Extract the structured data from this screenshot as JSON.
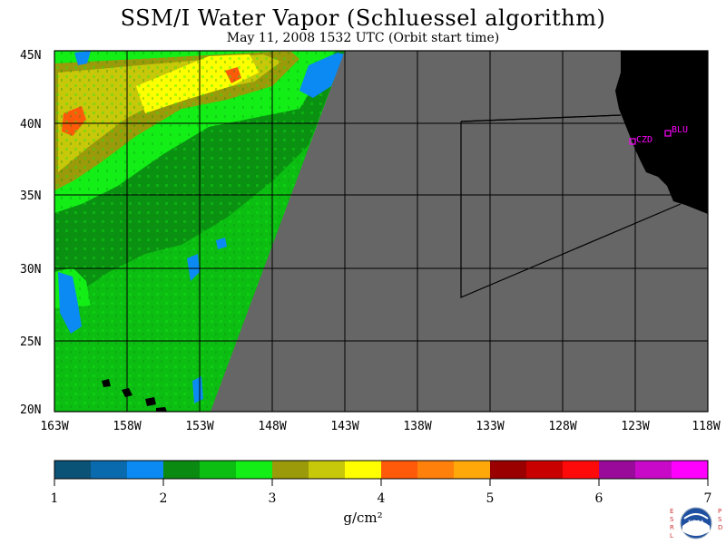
{
  "header": {
    "title": "SSM/I Water Vapor (Schluessel algorithm)",
    "subtitle": "May 11, 2008  1532 UTC  (Orbit start time)"
  },
  "map": {
    "lon_labels": [
      "163W",
      "158W",
      "153W",
      "148W",
      "143W",
      "138W",
      "133W",
      "128W",
      "123W",
      "118W"
    ],
    "lat_labels": [
      "45N",
      "40N",
      "35N",
      "30N",
      "25N",
      "20N"
    ],
    "stations": [
      {
        "id": "CZD",
        "label": "CZD"
      },
      {
        "id": "BLU",
        "label": "BLU"
      }
    ],
    "land_color": "#000000",
    "nodata_color": "#666666",
    "station_color": "#ff00ff"
  },
  "colorbar": {
    "tick_labels": [
      "1",
      "2",
      "3",
      "4",
      "5",
      "6",
      "7"
    ],
    "unit": "g/cm²",
    "min": 1,
    "max": 7,
    "colors": [
      "#0a5276",
      "#0a6aae",
      "#0a8af2",
      "#0b8a12",
      "#0cbe12",
      "#12ee16",
      "#9a9a0a",
      "#c8c80a",
      "#ffff00",
      "#ff5a0a",
      "#ff800a",
      "#ffa80a",
      "#9a0000",
      "#c80000",
      "#ff0a0a",
      "#9a0a9a",
      "#c80ac8",
      "#ff00ff"
    ]
  },
  "logo": {
    "left_text": "ESRL",
    "right_text": "PSD",
    "center_text": "NOAA"
  }
}
